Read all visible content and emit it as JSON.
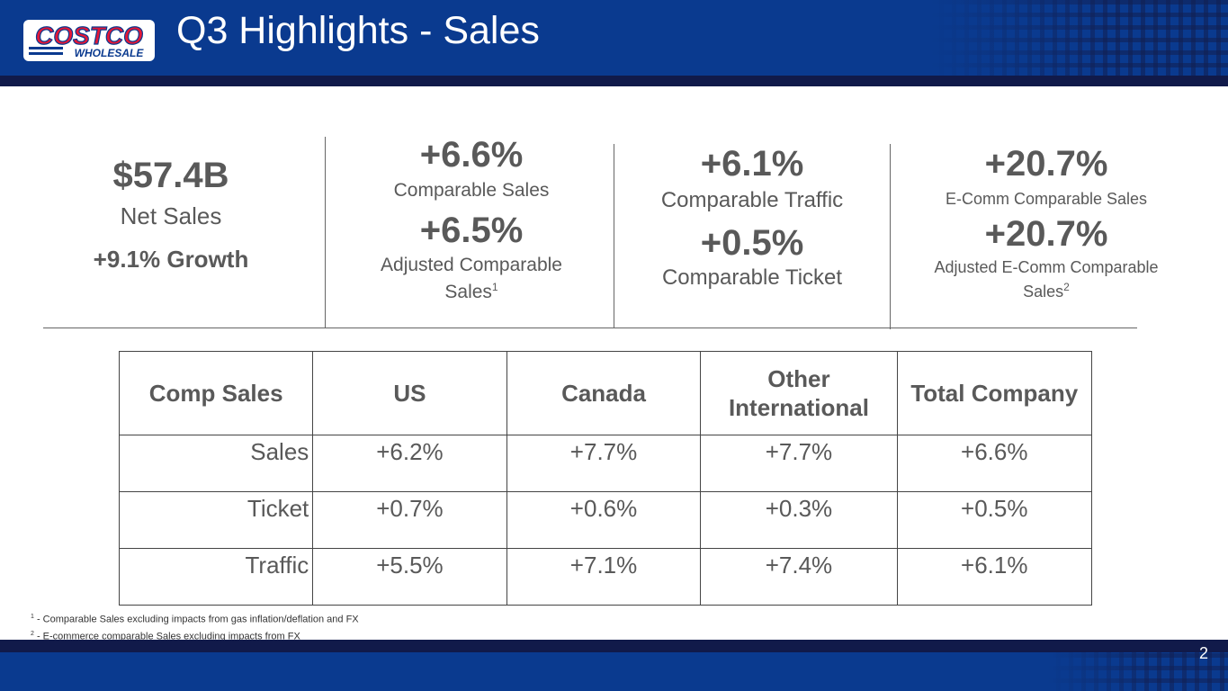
{
  "header": {
    "title": "Q3 Highlights - Sales",
    "logo": {
      "brand": "COSTCO",
      "sub": "WHOLESALE",
      "brand_color": "#e31837",
      "blue": "#0a3a8f"
    },
    "bg_color": "#0a3a8f"
  },
  "kpis": {
    "net_sales": {
      "value": "$57.4B",
      "label": "Net Sales",
      "growth": "+9.1% Growth"
    },
    "comp_sales": {
      "value": "+6.6%",
      "label": "Comparable Sales",
      "adj_value": "+6.5%",
      "adj_label": "Adjusted Comparable Sales",
      "adj_sup": "1"
    },
    "traffic_ticket": {
      "traffic_value": "+6.1%",
      "traffic_label": "Comparable Traffic",
      "ticket_value": "+0.5%",
      "ticket_label": "Comparable Ticket"
    },
    "ecomm": {
      "value": "+20.7%",
      "label": "E-Comm Comparable Sales",
      "adj_value": "+20.7%",
      "adj_label": "Adjusted E-Comm Comparable Sales",
      "adj_sup": "2"
    }
  },
  "table": {
    "headers": [
      "Comp Sales",
      "US",
      "Canada",
      "Other International",
      "Total Company"
    ],
    "rows": [
      {
        "label": "Sales",
        "values": [
          "+6.2%",
          "+7.7%",
          "+7.7%",
          "+6.6%"
        ]
      },
      {
        "label": "Ticket",
        "values": [
          "+0.7%",
          "+0.6%",
          "+0.3%",
          "+0.5%"
        ]
      },
      {
        "label": "Traffic",
        "values": [
          "+5.5%",
          "+7.1%",
          "+7.4%",
          "+6.1%"
        ]
      }
    ]
  },
  "footnotes": [
    {
      "num": "1",
      "text": " - Comparable Sales excluding impacts from gas inflation/deflation and FX"
    },
    {
      "num": "2",
      "text": " - E-commerce comparable Sales excluding impacts from FX"
    }
  ],
  "page_number": "2"
}
